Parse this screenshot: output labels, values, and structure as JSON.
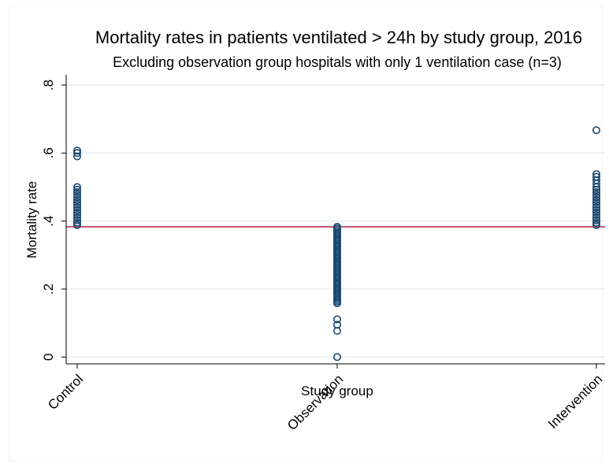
{
  "chart_data": {
    "type": "scatter",
    "title": "Mortality rates in patients ventilated > 24h by study group, 2016",
    "subtitle": "Excluding observation group hospitals with only 1 ventilation case (n=3)",
    "xlabel": "Study group",
    "ylabel": "Mortality rate",
    "categories": [
      "Control",
      "Observation",
      "Intervention"
    ],
    "y_ticks": [
      0,
      0.2,
      0.4,
      0.6,
      0.8
    ],
    "y_tick_labels": [
      "0",
      ".2",
      ".4",
      ".6",
      ".8"
    ],
    "ylim": [
      -0.02,
      0.83
    ],
    "grid": true,
    "reference_line": 0.383,
    "colors": {
      "marker": "#1a476f",
      "reference_line": "#b0223f",
      "grid": "#e8eef2"
    },
    "series": [
      {
        "category": "Control",
        "values": [
          0.607,
          0.6,
          0.59,
          0.5,
          0.492,
          0.485,
          0.478,
          0.47,
          0.462,
          0.455,
          0.448,
          0.44,
          0.432,
          0.425,
          0.418,
          0.41,
          0.402,
          0.395,
          0.388
        ]
      },
      {
        "category": "Observation",
        "values": [
          0.383,
          0.378,
          0.373,
          0.368,
          0.363,
          0.358,
          0.353,
          0.348,
          0.343,
          0.338,
          0.333,
          0.328,
          0.323,
          0.318,
          0.313,
          0.308,
          0.303,
          0.298,
          0.293,
          0.288,
          0.283,
          0.278,
          0.273,
          0.268,
          0.263,
          0.258,
          0.253,
          0.248,
          0.243,
          0.238,
          0.233,
          0.228,
          0.223,
          0.218,
          0.213,
          0.208,
          0.203,
          0.198,
          0.193,
          0.188,
          0.183,
          0.178,
          0.173,
          0.168,
          0.163,
          0.158,
          0.111,
          0.095,
          0.077,
          0.0
        ]
      },
      {
        "category": "Intervention",
        "values": [
          0.667,
          0.538,
          0.53,
          0.52,
          0.51,
          0.5,
          0.492,
          0.485,
          0.478,
          0.47,
          0.462,
          0.455,
          0.448,
          0.44,
          0.432,
          0.425,
          0.418,
          0.41,
          0.402,
          0.395,
          0.388
        ]
      }
    ]
  }
}
